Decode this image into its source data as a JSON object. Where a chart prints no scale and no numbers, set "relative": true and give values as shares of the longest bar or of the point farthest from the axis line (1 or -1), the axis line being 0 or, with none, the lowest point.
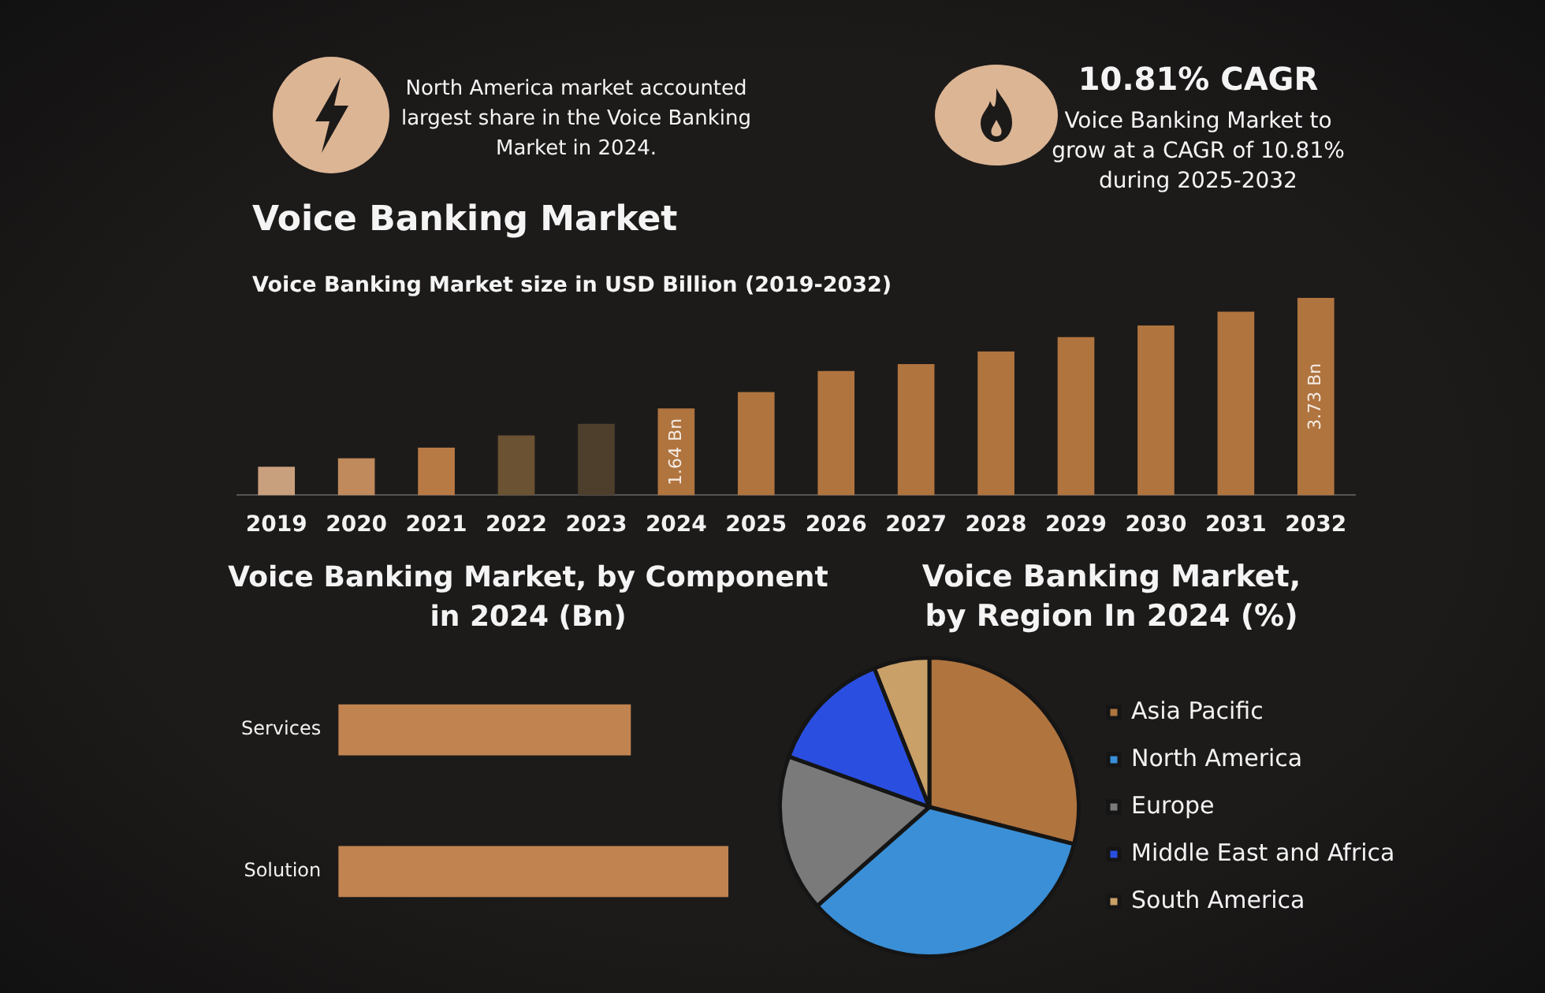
{
  "chart_data": [
    {
      "type": "bar",
      "title": "Voice Banking Market",
      "subtitle": "Voice Banking Market size in USD Billion (2019-2032)",
      "categories": [
        "2019",
        "2020",
        "2021",
        "2022",
        "2023",
        "2024",
        "2025",
        "2026",
        "2027",
        "2028",
        "2029",
        "2030",
        "2031",
        "2032"
      ],
      "values": [
        0.54,
        0.7,
        0.9,
        1.13,
        1.35,
        1.64,
        1.95,
        2.35,
        2.48,
        2.72,
        2.99,
        3.21,
        3.47,
        3.73
      ],
      "colors": [
        "#c9a07e",
        "#c08a5c",
        "#b87a45",
        "#6b5232",
        "#4e3f2c",
        "#b0743f",
        "#b0743f",
        "#b0743f",
        "#b0743f",
        "#b0743f",
        "#b0743f",
        "#b0743f",
        "#b0743f",
        "#b0743f"
      ],
      "value_labels": [
        null,
        null,
        null,
        null,
        null,
        "1.64 Bn",
        null,
        null,
        null,
        null,
        null,
        null,
        null,
        "3.73 Bn"
      ],
      "annotations": [
        "North America market accounted largest share in the Voice Banking Market in 2024.",
        "10.81% CAGR",
        "Voice Banking Market to grow at a CAGR of 10.81% during 2025-2032"
      ],
      "tick_labels": "x",
      "legend": false
    },
    {
      "type": "bar",
      "orientation": "horizontal",
      "relative": true,
      "title": "Voice Banking Market, by Component in 2024 (Bn)",
      "categories": [
        "Services",
        "Solution"
      ],
      "values": [
        0.75,
        1
      ],
      "color": "#c1834f",
      "legend": false
    },
    {
      "type": "pie",
      "title": "Voice Banking Market, by Region In 2024 (%)",
      "categories": [
        "Asia Pacific",
        "North America",
        "Europe",
        "Middle East and Africa",
        "South America"
      ],
      "values": [
        29,
        34.5,
        17,
        13.5,
        6
      ],
      "colors": [
        "#b0743f",
        "#3a8fd6",
        "#7a7a7a",
        "#2a4fe0",
        "#c9a068"
      ],
      "legend": "right"
    }
  ]
}
